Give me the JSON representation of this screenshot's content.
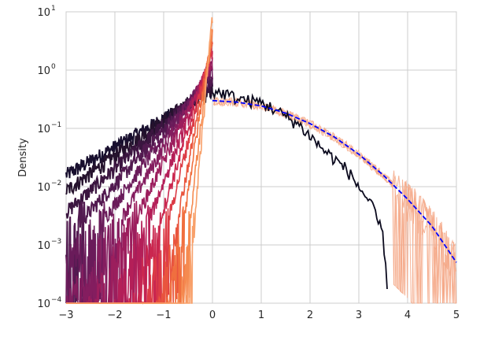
{
  "chart_data": {
    "type": "line",
    "title": "",
    "xlabel": "",
    "ylabel": "Density",
    "xlim": [
      -3,
      5
    ],
    "ylim": [
      0.0001,
      10
    ],
    "yscale": "log",
    "grid": true,
    "legend": "none",
    "x_ticks": [
      -3,
      -2,
      -1,
      0,
      1,
      2,
      3,
      4,
      5
    ],
    "x_tick_labels": [
      "−3",
      "−2",
      "−1",
      "0",
      "1",
      "2",
      "3",
      "4",
      "5"
    ],
    "y_ticks": [
      {
        "value": 0.0001,
        "base": "10",
        "exp": "−4"
      },
      {
        "value": 0.001,
        "base": "10",
        "exp": "−3"
      },
      {
        "value": 0.01,
        "base": "10",
        "exp": "−2"
      },
      {
        "value": 0.1,
        "base": "10",
        "exp": "−1"
      },
      {
        "value": 1,
        "base": "10",
        "exp": "0"
      },
      {
        "value": 10,
        "base": "10",
        "exp": "1"
      }
    ],
    "reference_curve": {
      "color": "#0000ff",
      "style": "dashed",
      "x": [
        0,
        0.5,
        1,
        1.5,
        2,
        2.5,
        3,
        3.5,
        4,
        4.5,
        5
      ],
      "y": [
        0.3,
        0.282,
        0.243,
        0.183,
        0.121,
        0.071,
        0.036,
        0.0158,
        0.0061,
        0.0021,
        0.0005
      ]
    },
    "left_families": {
      "count": 14,
      "colors": [
        "#180f2e",
        "#25122d",
        "#3b1540",
        "#521a50",
        "#6a1b5a",
        "#841d5f",
        "#9c1e5d",
        "#b41f58",
        "#ca274f",
        "#dc3b46",
        "#e9553e",
        "#f06f3f",
        "#f58a50",
        "#f8a06a"
      ],
      "scale": [
        0.9,
        0.72,
        0.58,
        0.47,
        0.38,
        0.31,
        0.25,
        0.2,
        0.16,
        0.13,
        0.1,
        0.08,
        0.06,
        0.045
      ],
      "peak": [
        0.45,
        0.55,
        0.65,
        0.8,
        1.0,
        1.2,
        1.5,
        1.8,
        2.2,
        2.8,
        3.5,
        4.5,
        6.0,
        9.0
      ]
    },
    "right_black_series": {
      "color": "#0b0a1e",
      "x": [
        0,
        0.25,
        0.5,
        0.75,
        1,
        1.25,
        1.5,
        1.75,
        2,
        2.25,
        2.5,
        2.75,
        3,
        3.25,
        3.5,
        3.6
      ],
      "y": [
        0.42,
        0.4,
        0.33,
        0.3,
        0.28,
        0.22,
        0.16,
        0.12,
        0.075,
        0.045,
        0.03,
        0.02,
        0.01,
        0.005,
        0.0015,
        0.0001
      ]
    },
    "right_peach_series": {
      "color": "#f5a887",
      "count": 4
    }
  }
}
